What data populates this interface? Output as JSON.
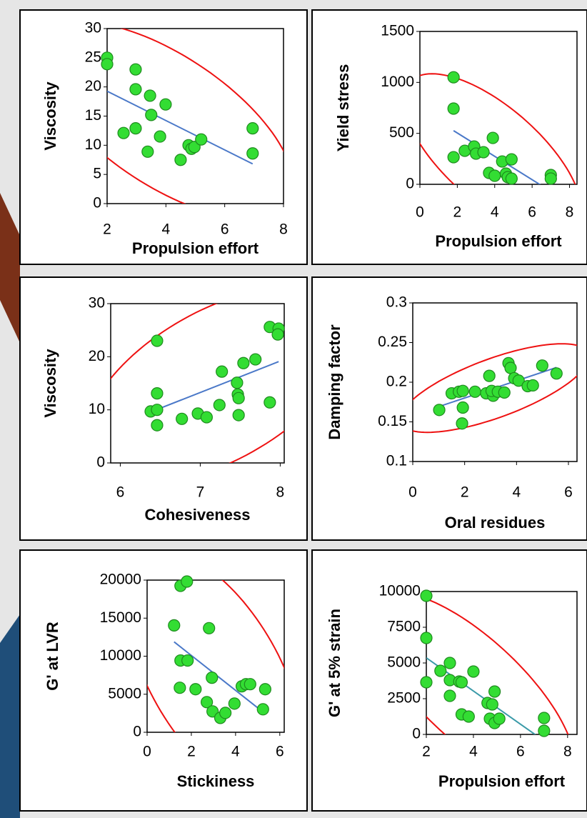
{
  "chart_data": [
    {
      "type": "scatter",
      "x_label": "Propulsion effort",
      "y_label": "Viscosity",
      "x": [
        2,
        2,
        2.97,
        2.97,
        3.46,
        3.99,
        3.5,
        2.97,
        2.56,
        3.8,
        3.38,
        4.77,
        4.87,
        4.97,
        5.2,
        4.5,
        6.95,
        6.95
      ],
      "y": [
        25,
        23.9,
        23,
        19.6,
        18.5,
        17,
        15.2,
        12.9,
        12.1,
        11.5,
        8.9,
        10,
        9.4,
        9.7,
        11,
        7.5,
        12.9,
        8.6
      ],
      "xlim": [
        2,
        8
      ],
      "ylim": [
        0,
        30
      ],
      "xticks": [
        2,
        4,
        6,
        8
      ],
      "yticks": [
        0,
        5,
        10,
        15,
        20,
        25,
        30
      ],
      "marker_color": "#33dd33",
      "trendline_color": "#4a78c8",
      "ellipse_color": "#ee1111"
    },
    {
      "type": "scatter",
      "x_label": "Propulsion effort",
      "y_label": "Yield stress",
      "x": [
        1.8,
        1.8,
        1.8,
        2.4,
        2.9,
        3,
        3.4,
        3.7,
        4,
        3.9,
        4.4,
        4.9,
        4.6,
        4.7,
        4.9,
        7,
        7
      ],
      "y": [
        1050,
        743,
        266,
        329,
        371,
        301,
        315,
        112,
        84,
        455,
        224,
        245,
        105,
        70,
        56,
        91,
        56
      ],
      "xlim": [
        0,
        8.4
      ],
      "ylim": [
        0,
        1500
      ],
      "xticks": [
        0,
        2,
        4,
        6,
        8
      ],
      "yticks": [
        0,
        500,
        1000,
        1500
      ],
      "marker_color": "#33dd33",
      "trendline_color": "#4a78c8",
      "ellipse_color": "#ee1111"
    },
    {
      "type": "scatter",
      "x_label": "Cohesiveness",
      "y_label": "Viscosity",
      "x": [
        6.46,
        6.46,
        6.38,
        6.46,
        6.46,
        6.77,
        6.97,
        7.08,
        7.24,
        7.27,
        7.46,
        7.47,
        7.48,
        7.48,
        7.54,
        7.69,
        7.87,
        7.87,
        7.98,
        7.97
      ],
      "y": [
        23,
        13.1,
        9.7,
        10,
        7.1,
        8.3,
        9.3,
        8.6,
        10.9,
        17.2,
        15.1,
        12.9,
        12.2,
        9,
        18.8,
        19.5,
        11.4,
        25.6,
        25.3,
        24.2
      ],
      "xlim": [
        5.88,
        8.05
      ],
      "ylim": [
        0,
        30
      ],
      "xticks": [
        6,
        7,
        8
      ],
      "yticks": [
        0,
        10,
        20,
        30
      ],
      "marker_color": "#33dd33",
      "trendline_color": "#4a78c8",
      "ellipse_color": "#ee1111"
    },
    {
      "type": "scatter",
      "x_label": "Oral residues",
      "y_label": "Damping factor",
      "x": [
        1.02,
        1.5,
        1.78,
        1.93,
        1.93,
        1.9,
        2.4,
        2.95,
        2.83,
        3.1,
        3.04,
        3.28,
        3.53,
        3.69,
        3.77,
        3.91,
        4.08,
        4.43,
        4.63,
        4.99,
        5.54
      ],
      "y": [
        0.165,
        0.186,
        0.188,
        0.189,
        0.168,
        0.148,
        0.188,
        0.208,
        0.186,
        0.183,
        0.189,
        0.188,
        0.187,
        0.224,
        0.218,
        0.205,
        0.202,
        0.195,
        0.196,
        0.221,
        0.211
      ],
      "xlim": [
        0,
        6.33
      ],
      "ylim": [
        0.1,
        0.3
      ],
      "xticks": [
        0,
        2,
        4,
        6
      ],
      "yticks": [
        0.1,
        0.15,
        0.2,
        0.25,
        0.3
      ],
      "marker_color": "#33dd33",
      "trendline_color": "#4a78c8",
      "ellipse_color": "#ee1111"
    },
    {
      "type": "scatter",
      "x_label": "Stickiness",
      "y_label": "G' at LVR",
      "x": [
        1.51,
        1.8,
        1.22,
        2.8,
        1.51,
        1.83,
        1.48,
        2.19,
        2.93,
        2.7,
        2.96,
        3.31,
        3.54,
        3.95,
        4.28,
        4.47,
        4.66,
        5.34,
        5.24
      ],
      "y": [
        19245,
        19811,
        14050,
        13680,
        9430,
        9430,
        5850,
        5660,
        7170,
        3960,
        2740,
        1890,
        2550,
        3770,
        6040,
        6320,
        6320,
        5660,
        3020
      ],
      "xlim": [
        0,
        6.2
      ],
      "ylim": [
        0,
        20000
      ],
      "xticks": [
        0,
        2,
        4,
        6
      ],
      "yticks": [
        0,
        5000,
        10000,
        15000,
        20000
      ],
      "marker_color": "#33dd33",
      "trendline_color": "#4a78c8",
      "ellipse_color": "#ee1111"
    },
    {
      "type": "scatter",
      "x_label": "Propulsion effort",
      "y_label": "G' at 5% strain",
      "x": [
        2,
        2,
        2,
        2.6,
        3,
        3,
        3,
        3.4,
        3.5,
        3.5,
        3.8,
        4,
        4.6,
        4.8,
        4.9,
        4.7,
        4.9,
        5.1,
        7,
        7
      ],
      "y": [
        9700,
        6750,
        3650,
        4450,
        5000,
        3800,
        2700,
        3700,
        3650,
        1400,
        1250,
        4400,
        2200,
        2100,
        3000,
        1100,
        800,
        1100,
        1150,
        250
      ],
      "xlim": [
        2,
        8.4
      ],
      "ylim": [
        0,
        10000
      ],
      "xticks": [
        2,
        4,
        6,
        8
      ],
      "yticks": [
        0,
        2500,
        5000,
        7500,
        10000
      ],
      "marker_color": "#33dd33",
      "trendline_color": "#3a9aa8",
      "ellipse_color": "#ee1111"
    }
  ]
}
